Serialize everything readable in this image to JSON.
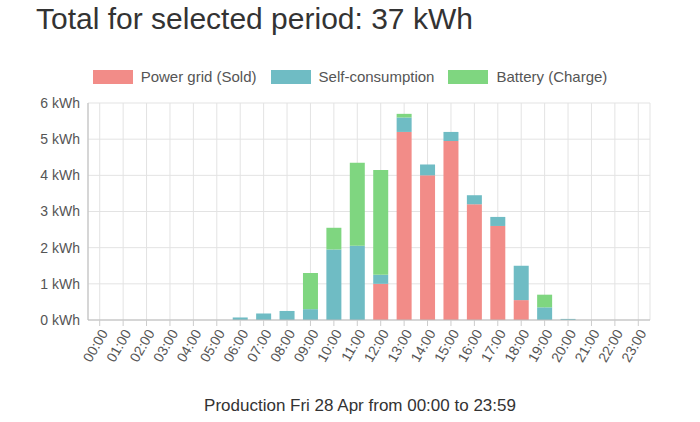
{
  "chart_data": {
    "type": "bar",
    "title": "Total for selected period: 37 kWh",
    "xlabel": "Production Fri 28 Apr from 00:00 to 23:59",
    "categories": [
      "00:00",
      "01:00",
      "02:00",
      "03:00",
      "04:00",
      "05:00",
      "06:00",
      "07:00",
      "08:00",
      "09:00",
      "10:00",
      "11:00",
      "12:00",
      "13:00",
      "14:00",
      "15:00",
      "16:00",
      "17:00",
      "18:00",
      "19:00",
      "20:00",
      "21:00",
      "22:00",
      "23:00"
    ],
    "series": [
      {
        "name": "Power grid (Sold)",
        "color": "#f28c88",
        "values": [
          0,
          0,
          0,
          0,
          0,
          0,
          0,
          0,
          0,
          0,
          0,
          0,
          1.0,
          5.2,
          4.0,
          4.95,
          3.2,
          2.6,
          0.55,
          0,
          0,
          0,
          0,
          0
        ]
      },
      {
        "name": "Self-consumption",
        "color": "#6fbcc4",
        "values": [
          0,
          0,
          0,
          0,
          0,
          0,
          0.07,
          0.18,
          0.25,
          0.3,
          1.95,
          2.05,
          0.25,
          0.4,
          0.3,
          0.25,
          0.25,
          0.25,
          0.95,
          0.35,
          0.03,
          0,
          0,
          0
        ]
      },
      {
        "name": "Battery (Charge)",
        "color": "#7fd680",
        "values": [
          0,
          0,
          0,
          0,
          0,
          0,
          0,
          0,
          0,
          1.0,
          0.6,
          2.3,
          2.9,
          0.1,
          0,
          0,
          0,
          0,
          0,
          0.35,
          0,
          0,
          0,
          0
        ]
      }
    ],
    "ylim": [
      0,
      6
    ],
    "yticks": [
      {
        "value": 0,
        "label": "0 kWh"
      },
      {
        "value": 1,
        "label": "1 kWh"
      },
      {
        "value": 2,
        "label": "2 kWh"
      },
      {
        "value": 3,
        "label": "3 kWh"
      },
      {
        "value": 4,
        "label": "4 kWh"
      },
      {
        "value": 5,
        "label": "5 kWh"
      },
      {
        "value": 6,
        "label": "6 kWh"
      }
    ],
    "stacked": true,
    "grid": true,
    "legend": "top"
  }
}
